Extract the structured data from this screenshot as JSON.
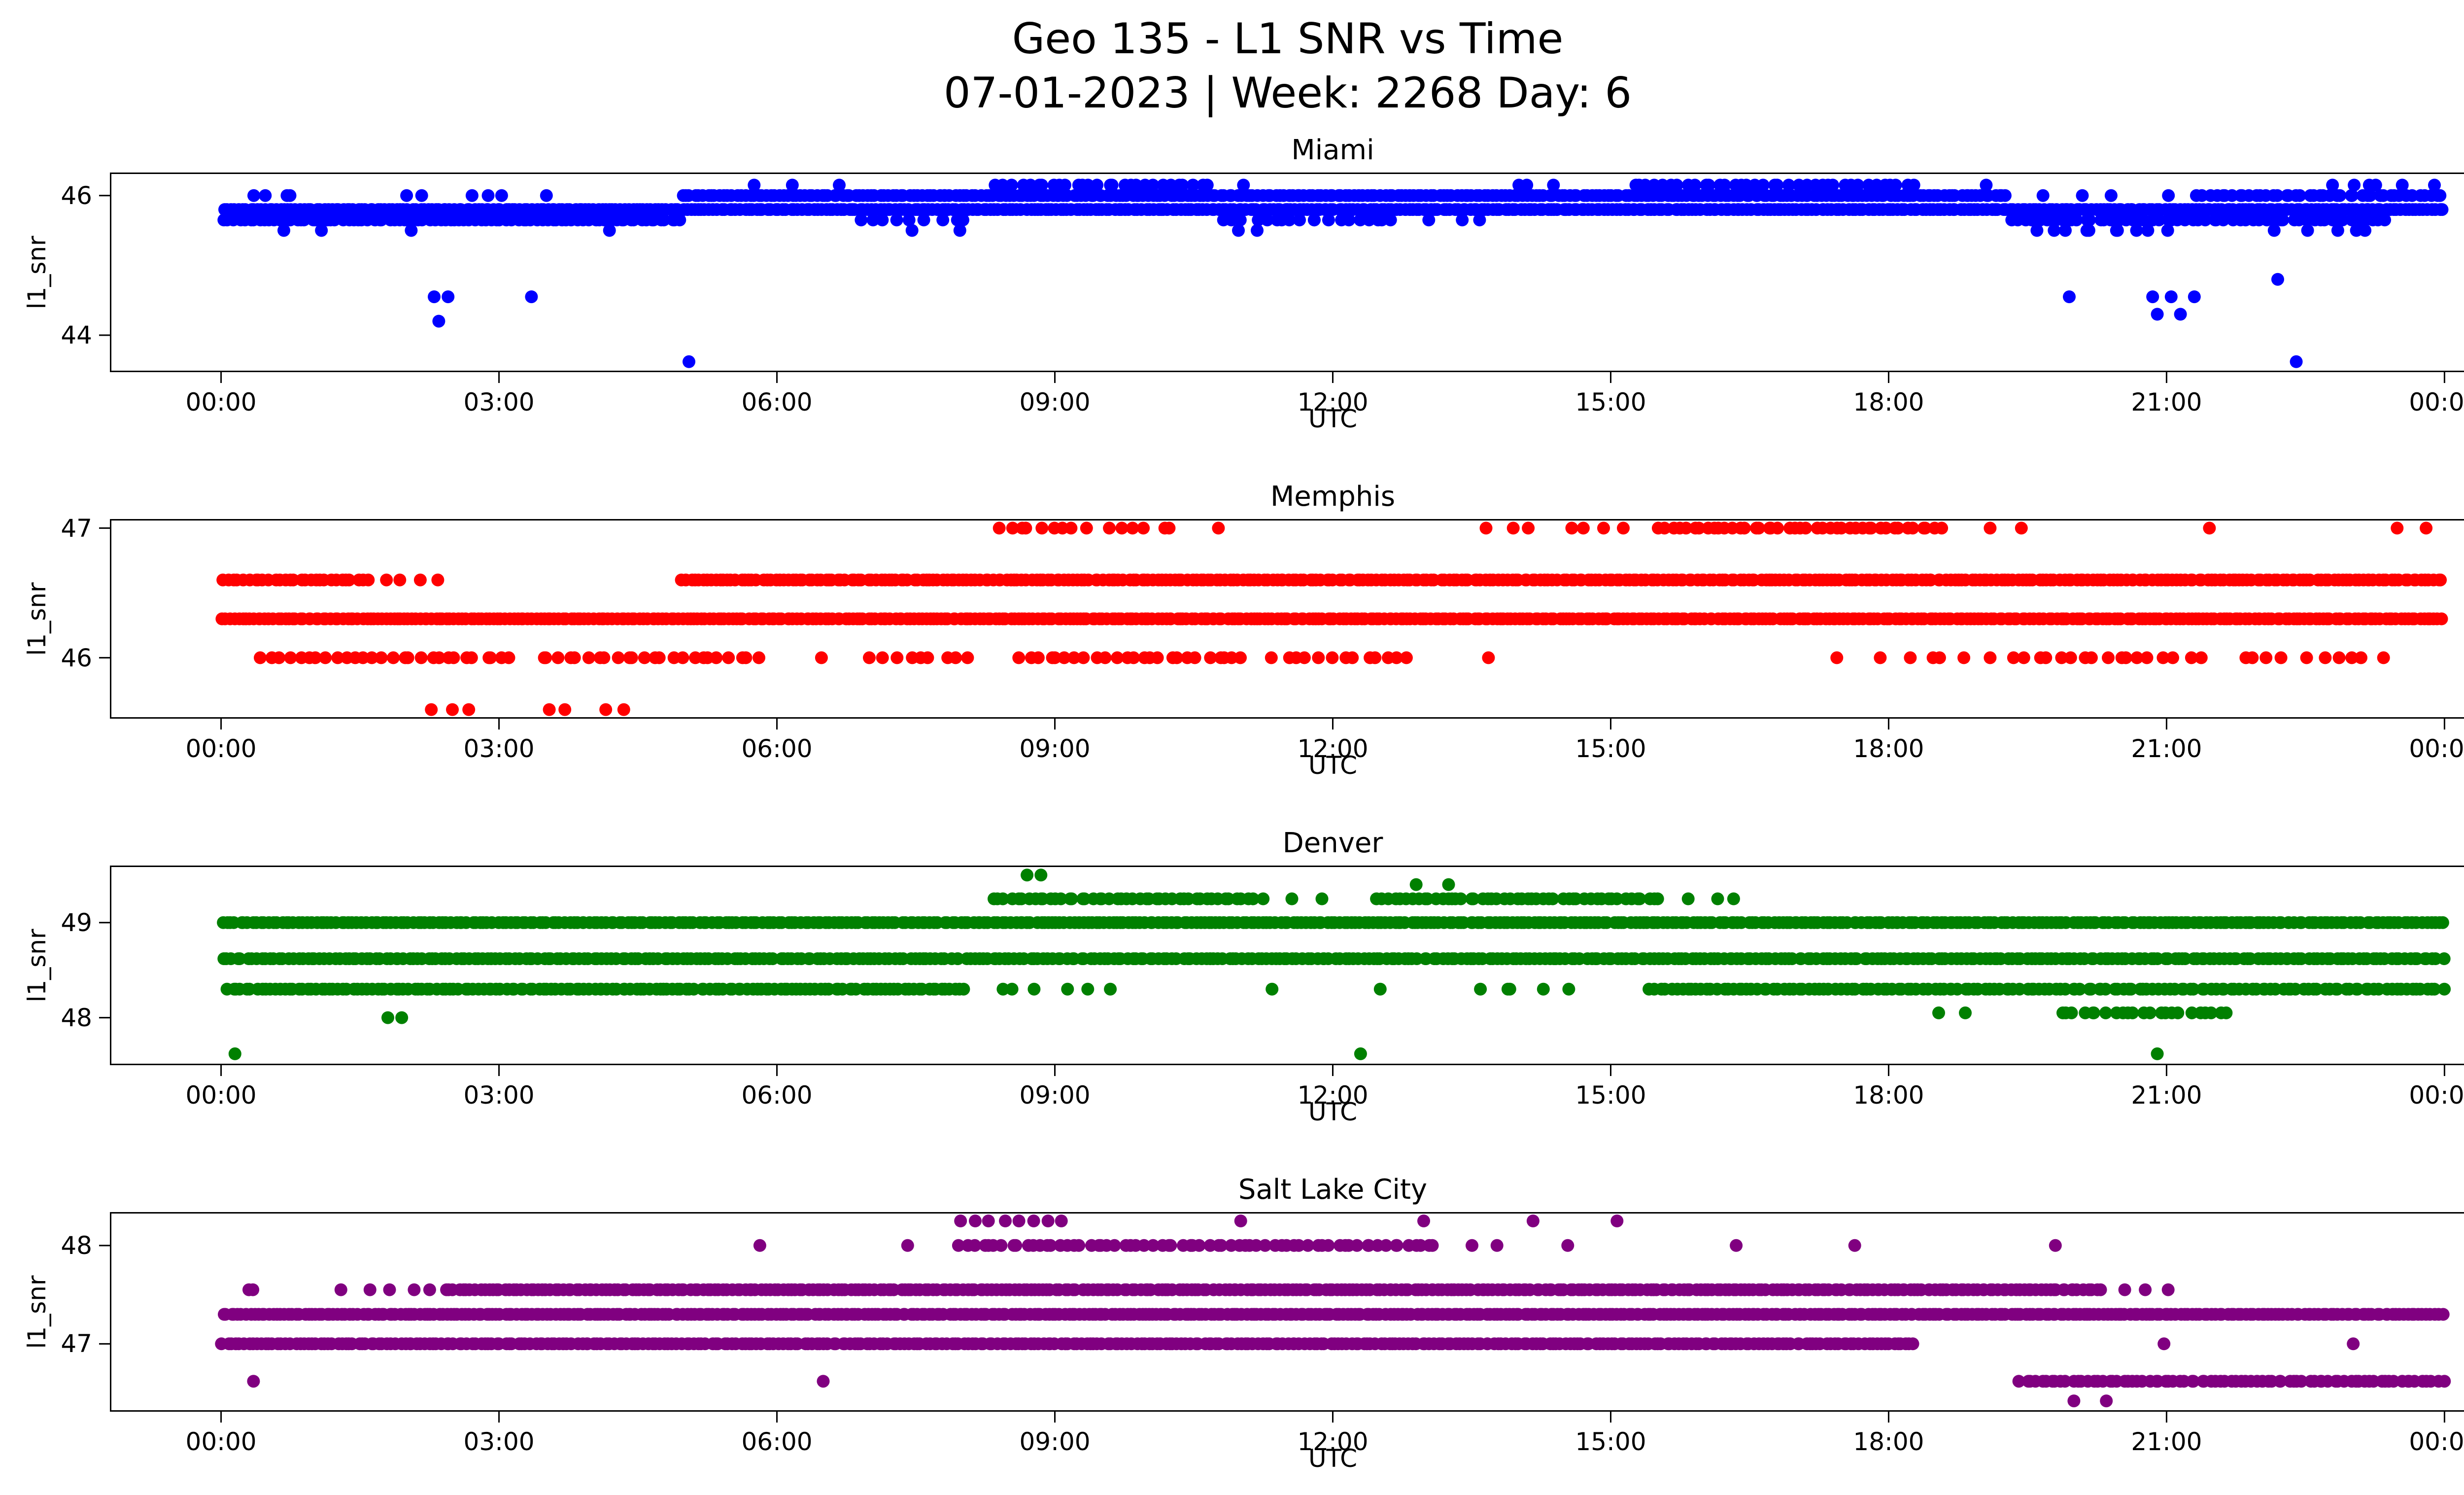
{
  "figure": {
    "title_line1": "Geo 135 - L1 SNR vs Time",
    "title_line2": "07-01-2023 | Week: 2268 Day: 6"
  },
  "xlabel": "UTC",
  "xticks": [
    "00:00",
    "03:00",
    "06:00",
    "09:00",
    "12:00",
    "15:00",
    "18:00",
    "21:00",
    "00:00"
  ],
  "xtick_hours": [
    0,
    3,
    6,
    9,
    12,
    15,
    18,
    21,
    24
  ],
  "xlim": [
    -1.2,
    25.2
  ],
  "chart_data": [
    {
      "type": "scatter",
      "title": "Miami",
      "color": "#0000ff",
      "ylabel": "l1_snr",
      "ylim": [
        43.47,
        46.33
      ],
      "yticks": [
        44,
        46
      ],
      "bands": [
        {
          "y": 45.8,
          "segments": [
            [
              0,
              24,
              24
            ]
          ]
        },
        {
          "y": 46.0,
          "segments": [
            [
              0.25,
              0.9,
              6
            ],
            [
              1.95,
              2.25,
              5
            ],
            [
              2.7,
              3.15,
              6
            ],
            [
              3.35,
              3.65,
              4
            ],
            [
              4.95,
              19.3,
              22
            ],
            [
              19.4,
              21.2,
              2
            ],
            [
              21.3,
              24,
              16
            ]
          ]
        },
        {
          "y": 46.15,
          "segments": [
            [
              5.7,
              6.7,
              3
            ],
            [
              8.35,
              10.7,
              12
            ],
            [
              11.0,
              11.3,
              3
            ],
            [
              13.9,
              14.4,
              5
            ],
            [
              15.2,
              18.3,
              12
            ],
            [
              19.0,
              19.3,
              3
            ],
            [
              22.6,
              23.9,
              5
            ]
          ]
        },
        {
          "y": 45.65,
          "segments": [
            [
              0,
              5.0,
              18
            ],
            [
              6.8,
              8.1,
              7
            ],
            [
              10.8,
              12.7,
              10
            ],
            [
              13.0,
              13.6,
              5
            ],
            [
              19.3,
              23.4,
              14
            ]
          ]
        },
        {
          "y": 45.5,
          "segments": [
            [
              0.4,
              1.2,
              3
            ],
            [
              2.0,
              2.4,
              3
            ],
            [
              3.9,
              4.3,
              2
            ],
            [
              7.3,
              8.0,
              3
            ],
            [
              10.9,
              11.4,
              3
            ],
            [
              19.5,
              21.1,
              6
            ],
            [
              22.1,
              23.4,
              4
            ]
          ]
        }
      ],
      "points": [
        [
          2.3,
          44.55
        ],
        [
          2.45,
          44.55
        ],
        [
          3.35,
          44.55
        ],
        [
          2.35,
          44.2
        ],
        [
          19.95,
          44.55
        ],
        [
          20.85,
          44.55
        ],
        [
          21.05,
          44.55
        ],
        [
          21.3,
          44.55
        ],
        [
          20.9,
          44.3
        ],
        [
          21.15,
          44.3
        ],
        [
          22.2,
          44.8
        ],
        [
          5.05,
          43.62
        ],
        [
          22.4,
          43.62
        ]
      ]
    },
    {
      "type": "scatter",
      "title": "Memphis",
      "color": "#ff0000",
      "ylabel": "l1_snr",
      "ylim": [
        45.53,
        47.07
      ],
      "yticks": [
        46,
        47
      ],
      "bands": [
        {
          "y": 46.3,
          "segments": [
            [
              0,
              24,
              24
            ]
          ]
        },
        {
          "y": 46.6,
          "segments": [
            [
              0,
              1.6,
              18
            ],
            [
              1.75,
              2.35,
              6
            ],
            [
              4.95,
              24,
              22
            ]
          ]
        },
        {
          "y": 46.0,
          "segments": [
            [
              0.4,
              3.2,
              10
            ],
            [
              3.4,
              5.85,
              10
            ],
            [
              6.3,
              6.55,
              3
            ],
            [
              6.9,
              8.2,
              7
            ],
            [
              8.6,
              11.1,
              10
            ],
            [
              11.3,
              12.9,
              8
            ],
            [
              13.55,
              13.85,
              3
            ],
            [
              17.3,
              17.6,
              3
            ],
            [
              17.9,
              19.1,
              5
            ],
            [
              19.3,
              21.4,
              8
            ],
            [
              21.7,
              23.4,
              6
            ]
          ]
        },
        {
          "y": 47.0,
          "segments": [
            [
              8.35,
              9.35,
              9
            ],
            [
              9.55,
              10.35,
              7
            ],
            [
              10.5,
              10.85,
              4
            ],
            [
              13.5,
              14.2,
              5
            ],
            [
              14.5,
              15.3,
              5
            ],
            [
              15.5,
              18.6,
              14
            ],
            [
              18.9,
              19.45,
              4
            ],
            [
              21.15,
              21.5,
              3
            ],
            [
              23.4,
              23.95,
              4
            ]
          ]
        },
        {
          "y": 45.6,
          "segments": [
            [
              2.2,
              2.75,
              5
            ],
            [
              3.35,
              3.75,
              4
            ],
            [
              4.05,
              4.55,
              4
            ]
          ]
        }
      ],
      "points": []
    },
    {
      "type": "scatter",
      "title": "Denver",
      "color": "#008000",
      "ylabel": "l1_snr",
      "ylim": [
        47.5,
        49.6
      ],
      "yticks": [
        48,
        49
      ],
      "bands": [
        {
          "y": 49.0,
          "segments": [
            [
              0,
              24,
              22
            ]
          ]
        },
        {
          "y": 48.62,
          "segments": [
            [
              0,
              24,
              20
            ]
          ]
        },
        {
          "y": 48.3,
          "segments": [
            [
              0.05,
              8.05,
              20
            ],
            [
              8.3,
              9.6,
              5
            ],
            [
              11.0,
              11.35,
              3
            ],
            [
              12.4,
              12.7,
              2
            ],
            [
              13.4,
              14.65,
              4
            ],
            [
              15.4,
              24,
              18
            ]
          ]
        },
        {
          "y": 49.25,
          "segments": [
            [
              8.3,
              11.25,
              16
            ],
            [
              11.5,
              11.95,
              4
            ],
            [
              12.45,
              15.55,
              16
            ],
            [
              15.8,
              16.35,
              5
            ]
          ]
        },
        {
          "y": 48.05,
          "segments": [
            [
              18.5,
              19.1,
              3
            ],
            [
              19.8,
              21.7,
              12
            ]
          ]
        }
      ],
      "points": [
        [
          8.7,
          49.5
        ],
        [
          8.85,
          49.5
        ],
        [
          12.9,
          49.4
        ],
        [
          13.25,
          49.4
        ],
        [
          1.8,
          48.0
        ],
        [
          1.95,
          48.0
        ],
        [
          0.15,
          47.62
        ],
        [
          12.3,
          47.62
        ],
        [
          20.9,
          47.62
        ]
      ]
    },
    {
      "type": "scatter",
      "title": "Salt Lake City",
      "color": "#800080",
      "ylabel": "l1_snr",
      "ylim": [
        46.31,
        48.34
      ],
      "yticks": [
        47,
        48
      ],
      "bands": [
        {
          "y": 47.3,
          "segments": [
            [
              0,
              24,
              24
            ]
          ]
        },
        {
          "y": 47.0,
          "segments": [
            [
              0,
              18.3,
              22
            ],
            [
              20.8,
              21.1,
              2
            ],
            [
              22.9,
              23.1,
              2
            ]
          ]
        },
        {
          "y": 47.55,
          "segments": [
            [
              0.2,
              0.35,
              2
            ],
            [
              1.25,
              2.3,
              5
            ],
            [
              2.4,
              20.3,
              22
            ],
            [
              20.5,
              21.05,
              5
            ]
          ]
        },
        {
          "y": 48.0,
          "segments": [
            [
              5.8,
              6.05,
              2
            ],
            [
              7.3,
              7.65,
              3
            ],
            [
              7.95,
              13.15,
              13
            ],
            [
              13.5,
              13.95,
              4
            ],
            [
              14.4,
              14.75,
              3
            ],
            [
              16.2,
              16.55,
              2
            ],
            [
              17.55,
              17.85,
              2
            ],
            [
              19.6,
              19.85,
              2
            ]
          ]
        },
        {
          "y": 48.25,
          "segments": [
            [
              7.95,
              9.15,
              7
            ],
            [
              10.95,
              11.3,
              2
            ],
            [
              12.95,
              13.2,
              2
            ],
            [
              13.95,
              14.2,
              2
            ],
            [
              14.95,
              15.25,
              2
            ]
          ]
        },
        {
          "y": 46.62,
          "segments": [
            [
              19.4,
              24,
              18
            ]
          ]
        }
      ],
      "points": [
        [
          0.35,
          46.62
        ],
        [
          6.5,
          46.62
        ],
        [
          20.0,
          46.42
        ],
        [
          20.35,
          46.42
        ],
        [
          0.3,
          47.55
        ]
      ]
    }
  ]
}
